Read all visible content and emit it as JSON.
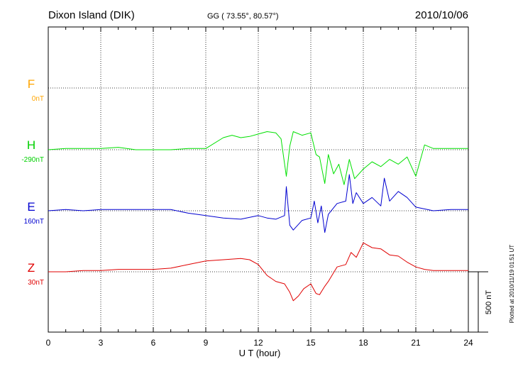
{
  "header": {
    "station": "Dixon Island (DIK)",
    "coords": "GG ( 73.55°,  80.57°)",
    "date": "2010/10/06"
  },
  "plotted_note": "Plotted at 2010/11/19 01:51  UT",
  "scale_label": "500 nT",
  "colors": {
    "F": "#ffa500",
    "H": "#00e000",
    "E": "#0000d0",
    "Z": "#e00000"
  },
  "chart_data": {
    "type": "line",
    "xlabel": "U T (hour)",
    "xlim": [
      0,
      24
    ],
    "x_ticks": [
      "0",
      "3",
      "6",
      "9",
      "12",
      "15",
      "18",
      "21",
      "24"
    ],
    "scale_nT_per_division": 500,
    "series": [
      {
        "name": "F",
        "baseline": "0nT",
        "x": [],
        "y": []
      },
      {
        "name": "H",
        "baseline": "-290nT",
        "x": [
          0,
          1,
          2,
          3,
          4,
          5,
          6,
          7,
          8,
          9,
          10,
          10.5,
          11,
          11.5,
          12,
          12.5,
          13,
          13.3,
          13.6,
          13.8,
          14,
          14.5,
          15,
          15.3,
          15.5,
          15.8,
          16,
          16.3,
          16.6,
          16.9,
          17.2,
          17.5,
          18,
          18.5,
          19,
          19.5,
          20,
          20.5,
          21,
          21.5,
          22,
          23,
          24
        ],
        "y": [
          0,
          10,
          10,
          10,
          20,
          0,
          0,
          0,
          10,
          10,
          100,
          120,
          100,
          110,
          130,
          150,
          140,
          90,
          -220,
          30,
          150,
          120,
          140,
          -40,
          -60,
          -280,
          -40,
          -200,
          -120,
          -290,
          -80,
          -240,
          -160,
          -100,
          -140,
          -80,
          -120,
          -60,
          -220,
          40,
          10,
          10,
          10
        ]
      },
      {
        "name": "E",
        "baseline": "160nT",
        "x": [
          0,
          1,
          2,
          3,
          4,
          5,
          6,
          7,
          8,
          9,
          10,
          11,
          12,
          12.5,
          13,
          13.5,
          13.6,
          13.8,
          14,
          14.5,
          15,
          15.2,
          15.4,
          15.6,
          15.8,
          16,
          16.5,
          17,
          17.2,
          17.4,
          17.6,
          18,
          18.5,
          19,
          19.2,
          19.5,
          20,
          20.5,
          21,
          22,
          23,
          24
        ],
        "y": [
          0,
          10,
          0,
          10,
          10,
          10,
          10,
          10,
          -20,
          -40,
          -60,
          -70,
          -40,
          -60,
          -70,
          -40,
          200,
          -120,
          -160,
          -80,
          -60,
          80,
          -100,
          40,
          -180,
          -30,
          60,
          80,
          300,
          60,
          150,
          60,
          110,
          40,
          270,
          80,
          160,
          110,
          30,
          0,
          10,
          10
        ]
      },
      {
        "name": "Z",
        "baseline": "30nT",
        "x": [
          0,
          1,
          2,
          3,
          4,
          5,
          6,
          7,
          8,
          9,
          10,
          11,
          11.5,
          12,
          12.5,
          13,
          13.5,
          13.8,
          14,
          14.3,
          14.6,
          15,
          15.3,
          15.5,
          15.8,
          16,
          16.5,
          17,
          17.3,
          17.6,
          18,
          18.5,
          19,
          19.5,
          20,
          20.5,
          21,
          21.5,
          22,
          23,
          24
        ],
        "y": [
          0,
          0,
          10,
          10,
          20,
          20,
          20,
          30,
          60,
          90,
          100,
          110,
          100,
          60,
          -30,
          -80,
          -100,
          -170,
          -240,
          -200,
          -140,
          -100,
          -180,
          -190,
          -120,
          -80,
          40,
          60,
          160,
          120,
          240,
          200,
          190,
          140,
          130,
          80,
          40,
          20,
          10,
          10,
          10
        ]
      }
    ]
  }
}
